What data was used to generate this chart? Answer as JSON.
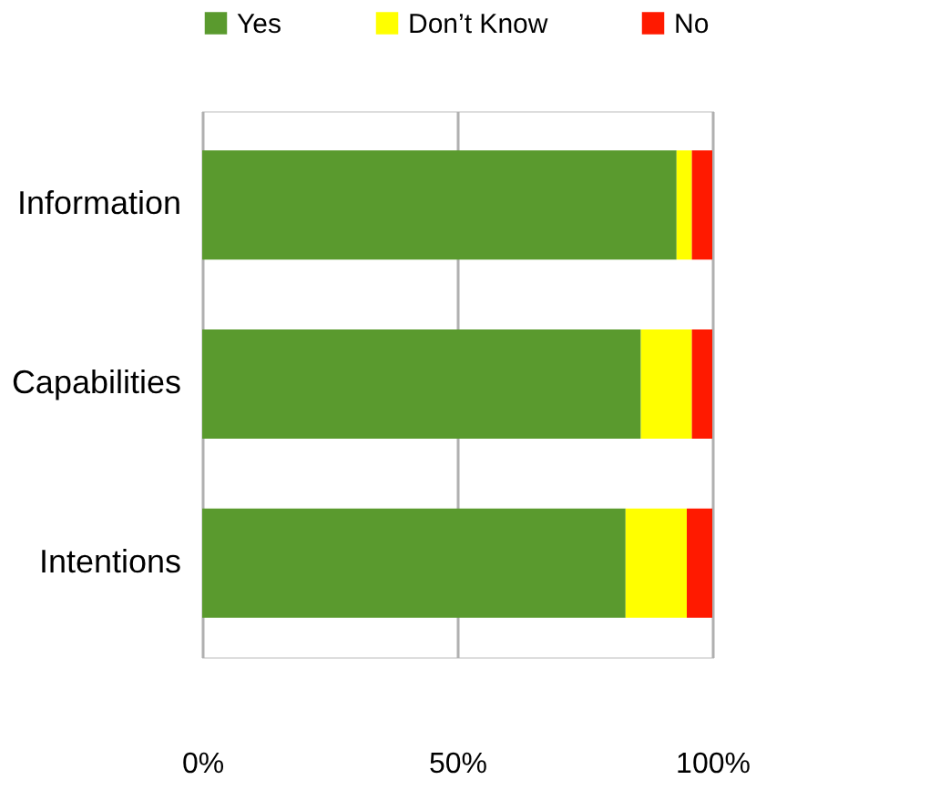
{
  "chart_data": {
    "type": "bar",
    "orientation": "horizontal",
    "stacked": true,
    "categories": [
      "Information",
      "Capabilities",
      "Intentions"
    ],
    "series": [
      {
        "name": "Yes",
        "color": "#5a9a2e",
        "values": [
          93,
          86,
          83
        ]
      },
      {
        "name": "Don’t Know",
        "color": "#ffff00",
        "values": [
          3,
          10,
          12
        ]
      },
      {
        "name": "No",
        "color": "#ff1a00",
        "values": [
          4,
          4,
          5
        ]
      }
    ],
    "xlim": [
      0,
      100
    ],
    "xticks": [
      {
        "value": 0,
        "label": "0%"
      },
      {
        "value": 50,
        "label": "50%"
      },
      {
        "value": 100,
        "label": "100%"
      }
    ],
    "grid": "x",
    "legend": "top"
  }
}
